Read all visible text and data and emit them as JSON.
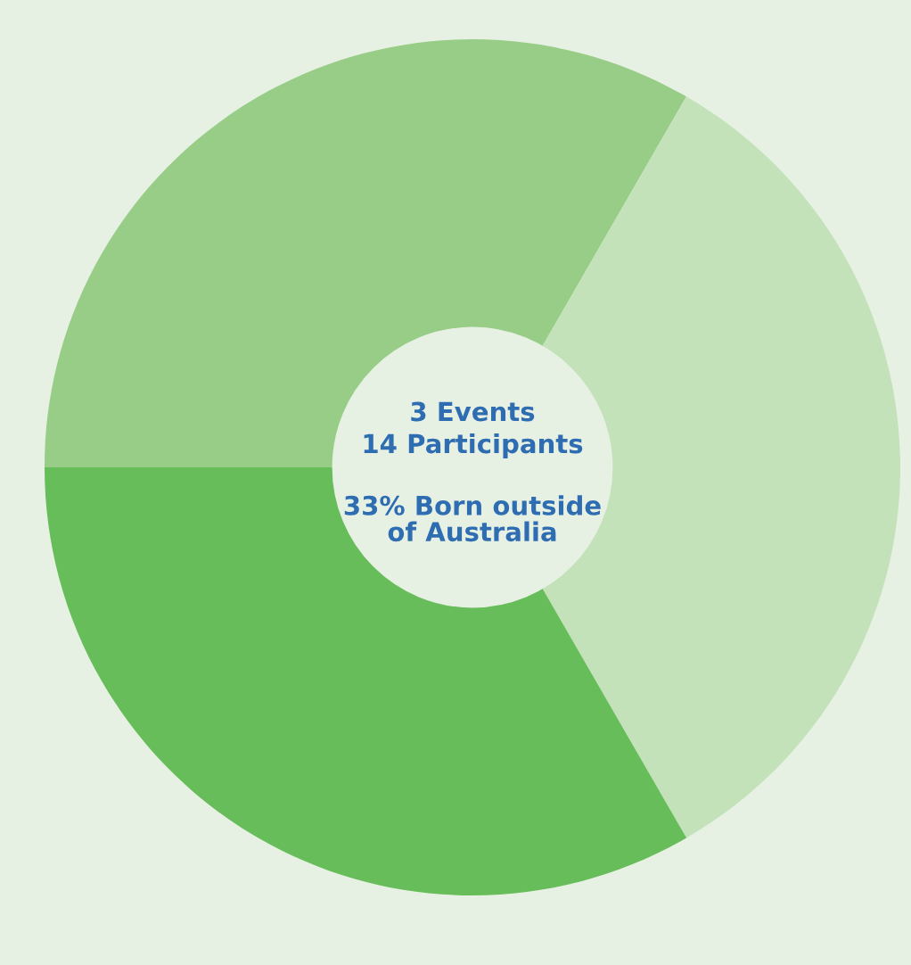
{
  "chart_data": {
    "type": "donut",
    "categories": [
      null,
      null,
      null
    ],
    "values": [
      33.33,
      33.33,
      33.34
    ],
    "colors": [
      "#98cd87",
      "#c3e2b9",
      "#67bd5a"
    ],
    "annotations": [
      "3 Events",
      "14 Participants",
      "33% Born outside\nof Australia"
    ],
    "legend": false
  }
}
